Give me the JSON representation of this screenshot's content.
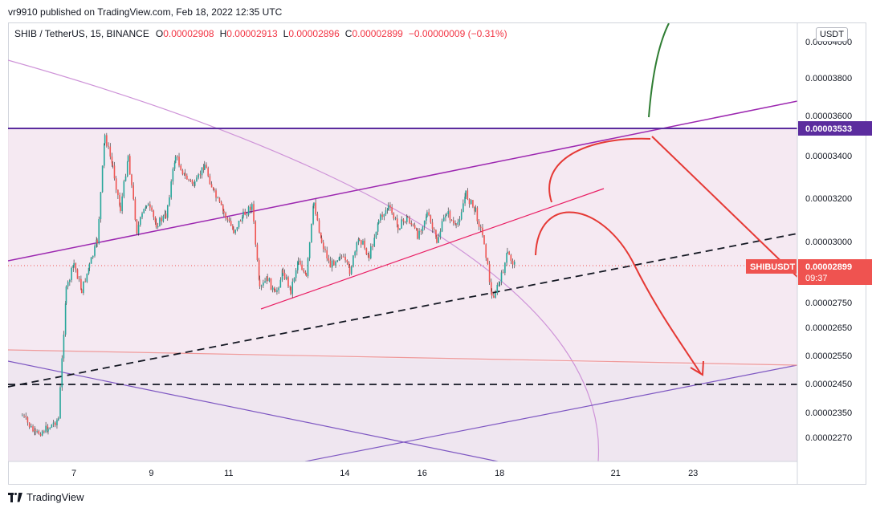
{
  "publisher_line": "vr9910 published on TradingView.com, Feb 18, 2022 12:35 UTC",
  "legend": {
    "symbol": "SHIB / TetherUS, 15, BINANCE",
    "o_label": "O",
    "o_value": "0.00002908",
    "h_label": "H",
    "h_value": "0.00002913",
    "l_label": "L",
    "l_value": "0.00002896",
    "c_label": "C",
    "c_value": "0.00002899",
    "change": "−0.00000009 (−0.31%)"
  },
  "currency_button": "USDT",
  "footer_brand": "TradingView",
  "colors": {
    "up": "#26a69a",
    "down": "#ef5350",
    "wick": "#222222",
    "resistance": "#5b2c9e",
    "channel": "#9c27b0",
    "wedge": "#e91e63",
    "arrow": "#e53935",
    "green_arrow": "#2e7d32",
    "arc": "#ce93d8"
  },
  "chart_data": {
    "type": "candlestick",
    "x_ticks": [
      "7",
      "9",
      "11",
      "14",
      "16",
      "18",
      "21",
      "23"
    ],
    "y_ticks": [
      "0.00004000",
      "0.00003800",
      "0.00003600",
      "0.00003400",
      "0.00003200",
      "0.00003000",
      "0.00002750",
      "0.00002650",
      "0.00002550",
      "0.00002450",
      "0.00002350",
      "0.00002270"
    ],
    "price_tag": {
      "symbol": "SHIBUSDT",
      "price": "0.00002899",
      "countdown": "09:37"
    },
    "resistance_tag": "0.00003533",
    "price_path": [
      [
        "Feb 6",
        2.34e-05
      ],
      [
        "Feb 6",
        2.28e-05
      ],
      [
        "Feb 6",
        2.3e-05
      ],
      [
        "Feb 7",
        2.33e-05
      ],
      [
        "Feb 7",
        2.8e-05
      ],
      [
        "Feb 7",
        2.91e-05
      ],
      [
        "Feb 7",
        2.8e-05
      ],
      [
        "Feb 7",
        2.9e-05
      ],
      [
        "Feb 8",
        3e-05
      ],
      [
        "Feb 8",
        3.5e-05
      ],
      [
        "Feb 8",
        3.35e-05
      ],
      [
        "Feb 8",
        3.15e-05
      ],
      [
        "Feb 8",
        3.4e-05
      ],
      [
        "Feb 9",
        3.05e-05
      ],
      [
        "Feb 9",
        3.18e-05
      ],
      [
        "Feb 9",
        3.08e-05
      ],
      [
        "Feb 9",
        3.12e-05
      ],
      [
        "Feb 10",
        3.4e-05
      ],
      [
        "Feb 10",
        3.3e-05
      ],
      [
        "Feb 10",
        3.26e-05
      ],
      [
        "Feb 10",
        3.36e-05
      ],
      [
        "Feb 11",
        3.22e-05
      ],
      [
        "Feb 11",
        3.13e-05
      ],
      [
        "Feb 11",
        3.05e-05
      ],
      [
        "Feb 11",
        3.12e-05
      ],
      [
        "Feb 12",
        3.17e-05
      ],
      [
        "Feb 12",
        2.8e-05
      ],
      [
        "Feb 12",
        2.85e-05
      ],
      [
        "Feb 12",
        2.78e-05
      ],
      [
        "Feb 12",
        2.88e-05
      ],
      [
        "Feb 13",
        2.8e-05
      ],
      [
        "Feb 13",
        2.93e-05
      ],
      [
        "Feb 13",
        2.85e-05
      ],
      [
        "Feb 13",
        3.18e-05
      ],
      [
        "Feb 13",
        3e-05
      ],
      [
        "Feb 14",
        2.9e-05
      ],
      [
        "Feb 14",
        2.95e-05
      ],
      [
        "Feb 14",
        2.88e-05
      ],
      [
        "Feb 14",
        3.02e-05
      ],
      [
        "Feb 15",
        2.94e-05
      ],
      [
        "Feb 15",
        3.1e-05
      ],
      [
        "Feb 15",
        3.16e-05
      ],
      [
        "Feb 15",
        3.07e-05
      ],
      [
        "Feb 16",
        3.11e-05
      ],
      [
        "Feb 16",
        3.03e-05
      ],
      [
        "Feb 16",
        3.13e-05
      ],
      [
        "Feb 16",
        3e-05
      ],
      [
        "Feb 17",
        3.14e-05
      ],
      [
        "Feb 17",
        3.06e-05
      ],
      [
        "Feb 17",
        3.22e-05
      ],
      [
        "Feb 17",
        3.14e-05
      ],
      [
        "Feb 18",
        3e-05
      ],
      [
        "Feb 18",
        2.77e-05
      ],
      [
        "Feb 18",
        2.83e-05
      ],
      [
        "Feb 18",
        2.95e-05
      ],
      [
        "Feb 18",
        2.9e-05
      ]
    ]
  }
}
